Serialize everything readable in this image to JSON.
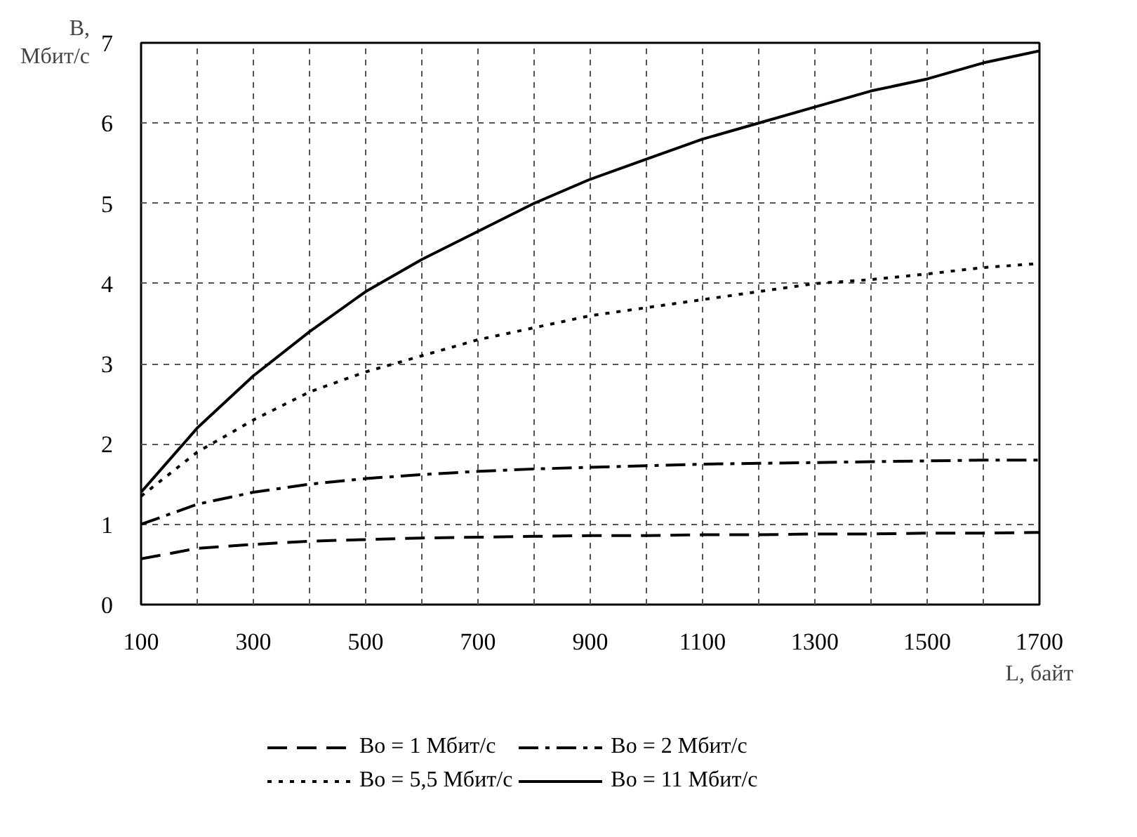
{
  "chart_data": {
    "type": "line",
    "ylabel": "B,\nМбит/с",
    "xlabel": "L, байт",
    "x": [
      100,
      200,
      300,
      400,
      500,
      600,
      700,
      800,
      900,
      1000,
      1100,
      1200,
      1300,
      1400,
      1500,
      1600,
      1700
    ],
    "series": [
      {
        "name": "Bo = 1 Мбит/с",
        "color": "#000000",
        "line_style": "dashed",
        "values": [
          0.57,
          0.7,
          0.75,
          0.79,
          0.81,
          0.83,
          0.84,
          0.85,
          0.86,
          0.86,
          0.87,
          0.87,
          0.88,
          0.88,
          0.89,
          0.89,
          0.9
        ]
      },
      {
        "name": "Bo = 2 Мбит/с",
        "color": "#000000",
        "line_style": "dashdot",
        "values": [
          1.0,
          1.25,
          1.4,
          1.5,
          1.57,
          1.62,
          1.66,
          1.69,
          1.71,
          1.73,
          1.75,
          1.76,
          1.77,
          1.78,
          1.79,
          1.8,
          1.8
        ]
      },
      {
        "name": "Bo = 5,5 Мбит/с",
        "color": "#000000",
        "line_style": "dotted",
        "values": [
          1.35,
          1.9,
          2.3,
          2.65,
          2.9,
          3.1,
          3.3,
          3.45,
          3.6,
          3.7,
          3.8,
          3.9,
          4.0,
          4.05,
          4.12,
          4.2,
          4.25
        ]
      },
      {
        "name": "Bo = 11 Мбит/с",
        "color": "#000000",
        "line_style": "solid",
        "values": [
          1.4,
          2.2,
          2.85,
          3.4,
          3.9,
          4.3,
          4.65,
          5.0,
          5.3,
          5.55,
          5.8,
          6.0,
          6.2,
          6.4,
          6.55,
          6.75,
          6.9
        ]
      }
    ],
    "xlim": [
      100,
      1700
    ],
    "xticks": [
      100,
      {
        "value": 200,
        "label": null
      },
      300,
      {
        "value": 400,
        "label": null
      },
      500,
      {
        "value": 600,
        "label": null
      },
      700,
      {
        "value": 800,
        "label": null
      },
      900,
      {
        "value": 1000,
        "label": null
      },
      1100,
      {
        "value": 1200,
        "label": null
      },
      1300,
      {
        "value": 1400,
        "label": null
      },
      1500,
      {
        "value": 1600,
        "label": null
      },
      1700
    ],
    "ylim": [
      0,
      7
    ],
    "yticks": [
      0,
      1,
      2,
      3,
      4,
      5,
      6,
      7
    ],
    "grid": true,
    "legend": "bottom",
    "marker": "none"
  }
}
